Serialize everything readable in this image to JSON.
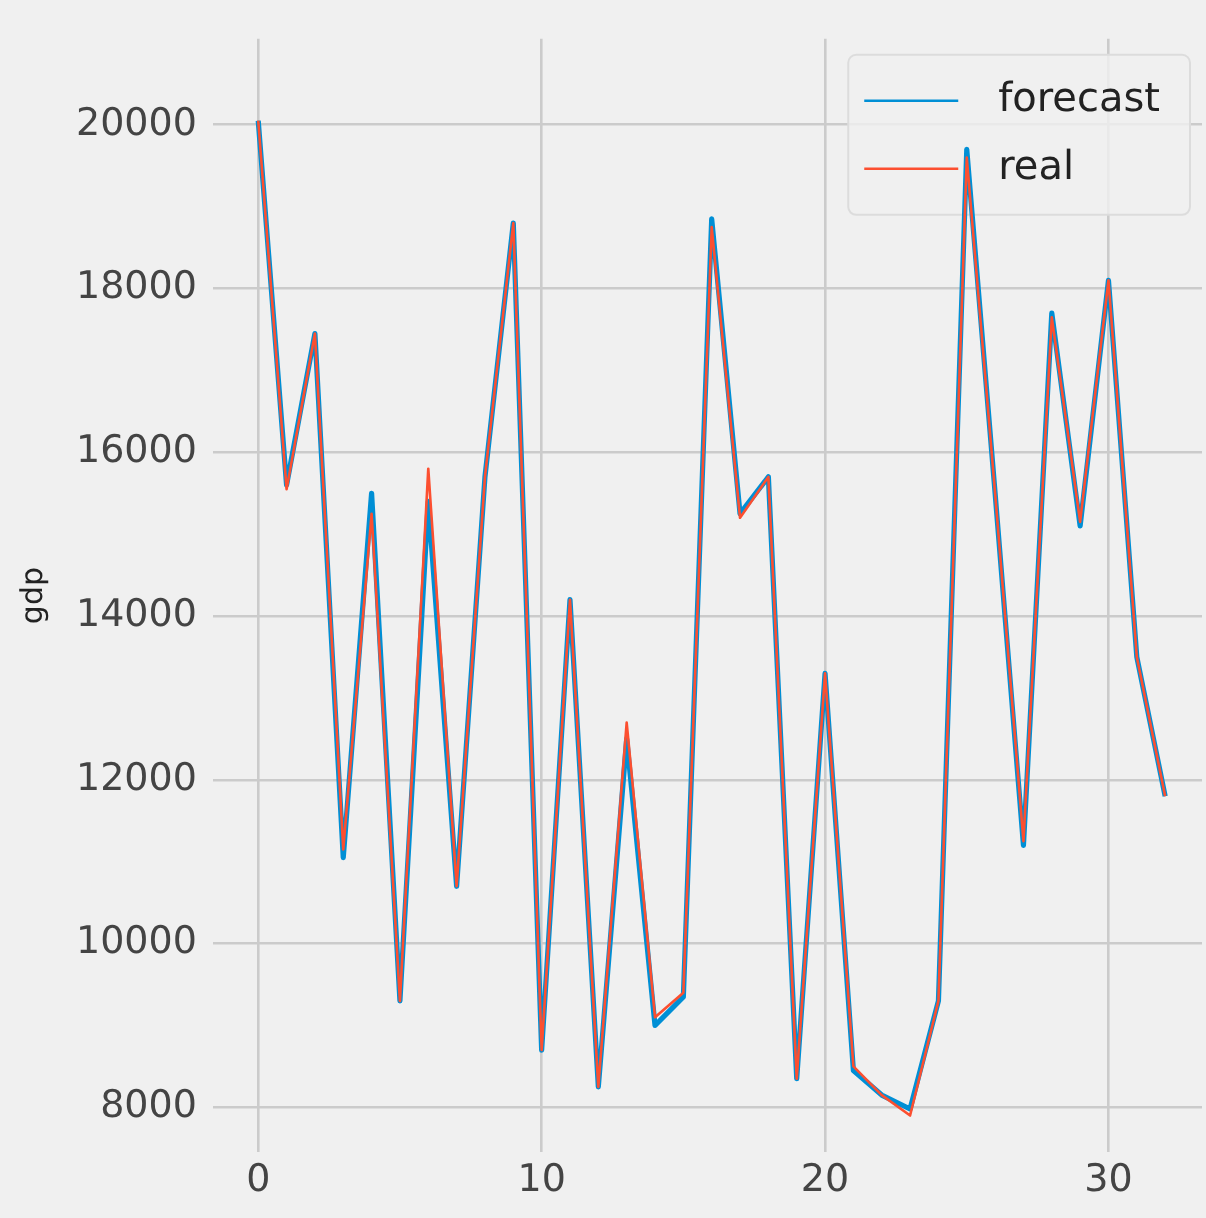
{
  "chart_data": {
    "type": "line",
    "ylabel": "gdp",
    "x": [
      0,
      1,
      2,
      3,
      4,
      5,
      6,
      7,
      8,
      9,
      10,
      11,
      12,
      13,
      14,
      15,
      16,
      17,
      18,
      19,
      20,
      21,
      22,
      23,
      24,
      25,
      26,
      27,
      28,
      29,
      30,
      31,
      32
    ],
    "series": [
      {
        "name": "forecast",
        "color": "#008fd5",
        "values": [
          20050,
          15600,
          17450,
          11050,
          15500,
          9300,
          15400,
          10700,
          15700,
          18800,
          8700,
          14200,
          8250,
          12500,
          9000,
          9350,
          18850,
          15250,
          15700,
          8350,
          13300,
          8450,
          8150,
          7980,
          9300,
          19700,
          15500,
          11200,
          17700,
          15100,
          18100,
          13500,
          11800
        ]
      },
      {
        "name": "real",
        "color": "#fc4f30",
        "values": [
          20050,
          15550,
          17450,
          11150,
          15250,
          9300,
          15800,
          10700,
          15700,
          18800,
          8700,
          14200,
          8250,
          12700,
          9100,
          9400,
          18750,
          15200,
          15700,
          8350,
          13300,
          8500,
          8150,
          7900,
          9300,
          19600,
          15500,
          11250,
          17650,
          15150,
          18100,
          13500,
          11800
        ]
      }
    ],
    "xlim": [
      -1.6,
      33.3
    ],
    "ylim": [
      7450,
      21050
    ],
    "xticks": [
      0,
      10,
      20,
      30
    ],
    "yticks": [
      8000,
      10000,
      12000,
      14000,
      16000,
      18000,
      20000
    ],
    "grid": true,
    "legend": "top right",
    "marker": "none",
    "line_style": "solid"
  }
}
